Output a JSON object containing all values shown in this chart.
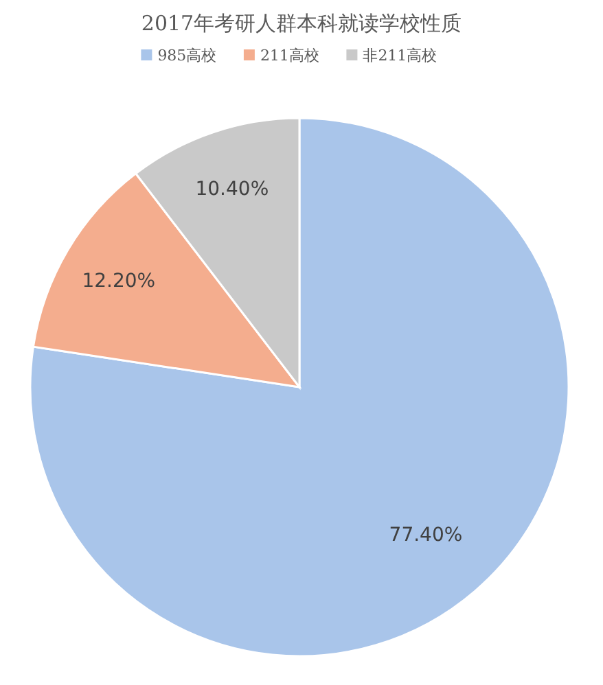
{
  "chart_data": {
    "type": "pie",
    "title": "2017年考研人群本科就读学校性质",
    "categories": [
      "985高校",
      "211高校",
      "非211高校"
    ],
    "values": [
      77.4,
      12.2,
      10.4
    ],
    "value_labels": [
      "77.40%",
      "12.20%",
      "10.40%"
    ],
    "colors": [
      "#a9c5ea",
      "#f4ad8e",
      "#c9c9c9"
    ],
    "legend": "top"
  }
}
